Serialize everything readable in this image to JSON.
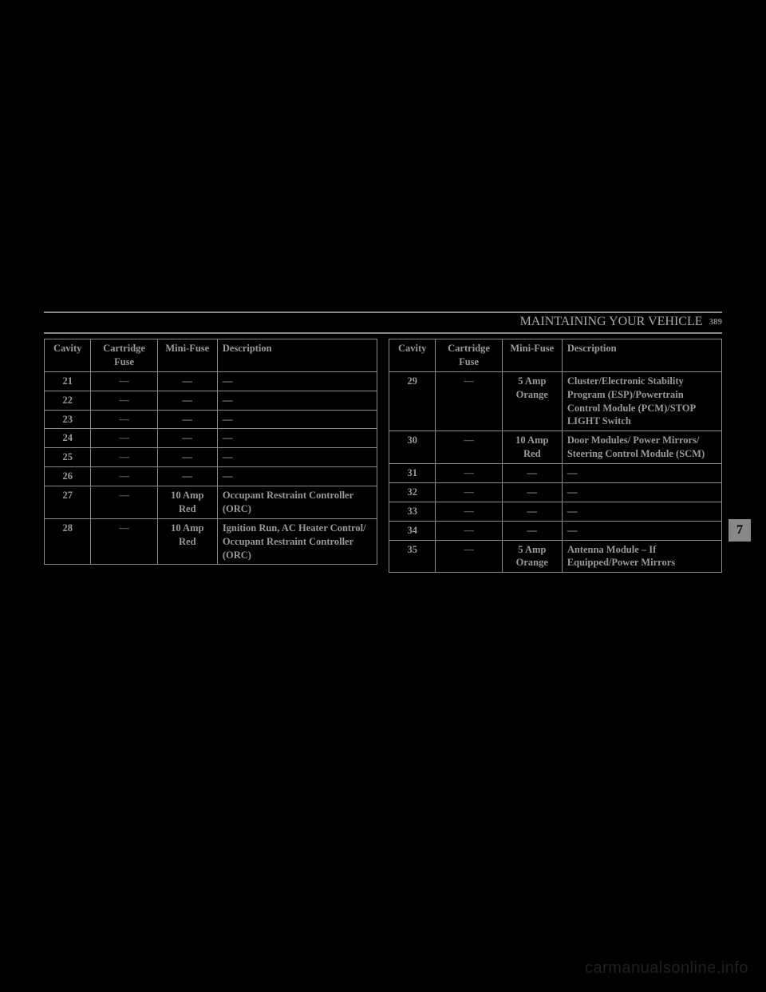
{
  "header": {
    "title": "MAINTAINING YOUR VEHICLE",
    "page": "389"
  },
  "tab_index": "7",
  "watermark": "carmanualsonline.info",
  "columns": {
    "cavity": "Cavity",
    "cartridge": "Cartridge Fuse",
    "mini": "Mini-Fuse",
    "description": "Description"
  },
  "left_table": {
    "rows": [
      {
        "cavity": "21",
        "cartridge": "—",
        "mini": "—",
        "description": "—"
      },
      {
        "cavity": "22",
        "cartridge": "—",
        "mini": "—",
        "description": "—"
      },
      {
        "cavity": "23",
        "cartridge": "—",
        "mini": "—",
        "description": "—"
      },
      {
        "cavity": "24",
        "cartridge": "—",
        "mini": "—",
        "description": "—"
      },
      {
        "cavity": "25",
        "cartridge": "—",
        "mini": "—",
        "description": "—"
      },
      {
        "cavity": "26",
        "cartridge": "—",
        "mini": "—",
        "description": "—"
      },
      {
        "cavity": "27",
        "cartridge": "—",
        "mini": "10 Amp Red",
        "description": "Occupant Restraint Controller (ORC)"
      },
      {
        "cavity": "28",
        "cartridge": "—",
        "mini": "10 Amp Red",
        "description": "Ignition Run, AC Heater Control/ Occupant Restraint Controller (ORC)"
      }
    ]
  },
  "right_table": {
    "rows": [
      {
        "cavity": "29",
        "cartridge": "—",
        "mini": "5 Amp Orange",
        "description": "Cluster/Electronic Stability Program (ESP)/Powertrain Control Module (PCM)/STOP LIGHT Switch"
      },
      {
        "cavity": "30",
        "cartridge": "—",
        "mini": "10 Amp Red",
        "description": "Door Modules/ Power Mirrors/ Steering Control Module (SCM)"
      },
      {
        "cavity": "31",
        "cartridge": "—",
        "mini": "—",
        "description": "—"
      },
      {
        "cavity": "32",
        "cartridge": "—",
        "mini": "—",
        "description": "—"
      },
      {
        "cavity": "33",
        "cartridge": "—",
        "mini": "—",
        "description": "—"
      },
      {
        "cavity": "34",
        "cartridge": "—",
        "mini": "—",
        "description": "—"
      },
      {
        "cavity": "35",
        "cartridge": "—",
        "mini": "5 Amp Orange",
        "description": "Antenna Module – If Equipped/Power Mirrors"
      }
    ]
  },
  "styling": {
    "background_color": "#000000",
    "text_color": "#999999",
    "border_color": "#888888",
    "font_family": "Georgia",
    "header_fontsize": 10,
    "cell_fontsize": 12.5,
    "tab_bg": "#888888",
    "tab_fg": "#000000",
    "col_widths_pct": {
      "cavity": 14,
      "cartridge": 20,
      "mini": 18,
      "description": 48
    }
  }
}
